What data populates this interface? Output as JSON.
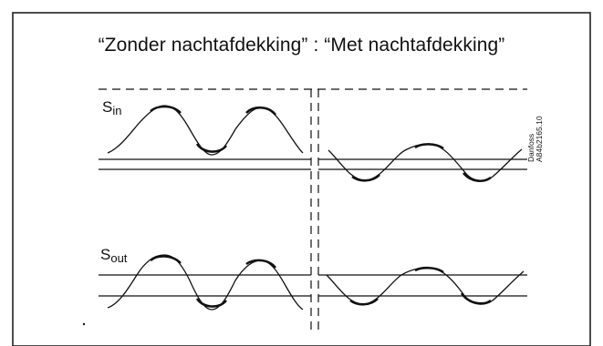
{
  "title": "“Zonder nachtafdekking” : “Met nachtafdekking”",
  "signals": {
    "in": {
      "base": "S",
      "sub": "in"
    },
    "out": {
      "base": "S",
      "sub": "out"
    }
  },
  "side_tag": {
    "line1": "Danfoss",
    "line2": "A84b2165.10"
  },
  "colors": {
    "line": "#111111",
    "frame": "#222222"
  }
}
